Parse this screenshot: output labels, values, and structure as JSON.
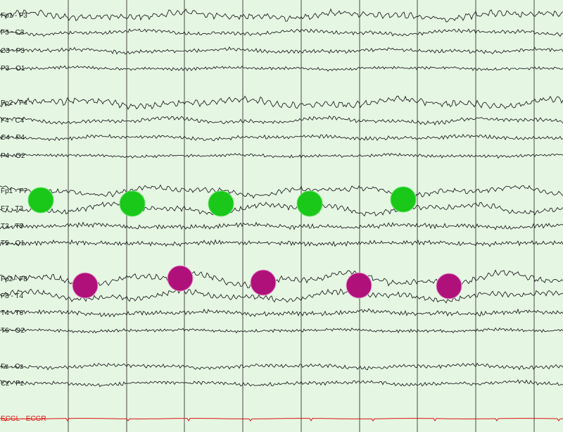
{
  "channels": [
    {
      "label": "Fp1 - F3"
    },
    {
      "label": "F3 - C3"
    },
    {
      "label": "C3 - P3"
    },
    {
      "label": "P3 - O1"
    },
    {
      "label": "Fp2 - F4"
    },
    {
      "label": "F4 - C4"
    },
    {
      "label": "C4 - P4"
    },
    {
      "label": "P4 - O2"
    },
    {
      "label": "Fp1 - F7"
    },
    {
      "label": "F7 - T3"
    },
    {
      "label": "T3 - T5"
    },
    {
      "label": "T5 - O1"
    },
    {
      "label": "Fp2 - F8"
    },
    {
      "label": "F8 - T4"
    },
    {
      "label": "T4 - T6"
    },
    {
      "label": "T6 - O2"
    },
    {
      "label": "Fz - Cz"
    },
    {
      "label": "Cz - Pz"
    },
    {
      "label": "ECGL - ECGR",
      "color": "#e01010"
    }
  ],
  "colors": {
    "background": "#e5f7e3",
    "trace": "#222222",
    "grid": "#4a4a4a",
    "ecg": "#e01010",
    "marker_left": "#19c819",
    "marker_right": "#b0107a"
  },
  "markers": {
    "left_temporal_count": 5,
    "right_temporal_count": 5
  }
}
